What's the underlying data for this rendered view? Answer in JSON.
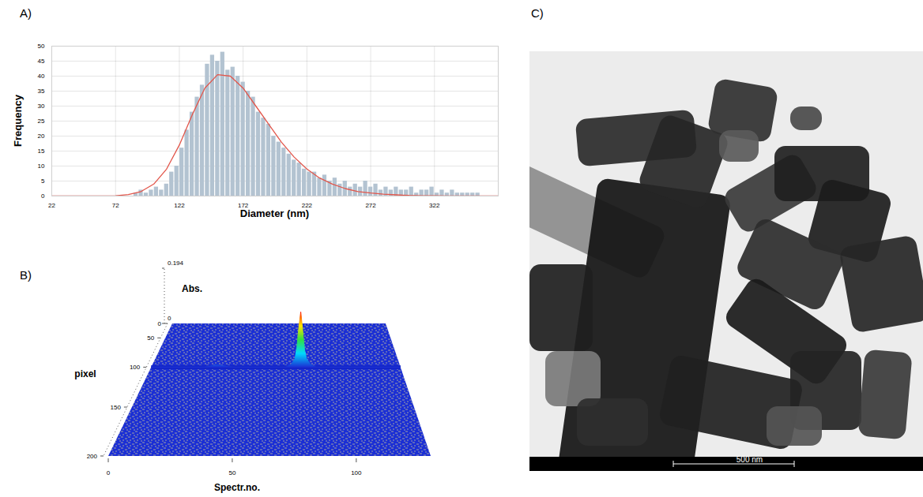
{
  "chart_data": [
    {
      "panel": "A)",
      "type": "histogram",
      "x_label": "Diameter (nm)",
      "y_label": "Frequency",
      "bins": [
        86,
        90,
        94,
        98,
        102,
        106,
        110,
        114,
        118,
        122,
        126,
        130,
        134,
        138,
        142,
        146,
        150,
        154,
        158,
        162,
        166,
        170,
        174,
        178,
        182,
        186,
        190,
        194,
        198,
        202,
        206,
        210,
        214,
        218,
        222,
        226,
        230,
        234,
        238,
        242,
        246,
        250,
        254,
        258,
        262,
        266,
        270,
        274,
        278,
        282,
        286,
        290,
        294,
        298,
        302,
        306,
        310,
        314,
        318,
        322,
        326,
        330,
        334,
        338,
        342,
        346,
        350,
        354,
        358
      ],
      "counts": [
        1,
        2,
        1,
        2,
        3,
        2,
        4,
        8,
        10,
        16,
        22,
        28,
        33,
        37,
        44,
        47,
        45,
        48,
        42,
        43,
        40,
        38,
        35,
        33,
        28,
        26,
        24,
        20,
        18,
        16,
        14,
        12,
        11,
        9,
        8,
        8,
        6,
        7,
        5,
        6,
        4,
        5,
        3,
        4,
        3,
        5,
        3,
        4,
        2,
        3,
        2,
        3,
        2,
        2,
        3,
        1,
        2,
        2,
        3,
        1,
        2,
        1,
        2,
        1,
        1,
        1,
        1,
        1
      ],
      "color": "#b3c3d1",
      "series": [
        {
          "type": "line",
          "color": "#e2564b",
          "x": [
            22,
            32,
            42,
            52,
            62,
            72,
            82,
            92,
            102,
            112,
            122,
            132,
            142,
            152,
            162,
            172,
            182,
            192,
            202,
            212,
            222,
            232,
            242,
            252,
            262,
            272,
            282,
            292,
            302,
            312,
            322,
            332,
            342,
            352,
            362,
            372
          ],
          "values": [
            0,
            0,
            0,
            0,
            0,
            0.1,
            0.5,
            1.5,
            4,
            9,
            17,
            27,
            36,
            40.5,
            40,
            36,
            30,
            24,
            18,
            13,
            9,
            6,
            4,
            2.5,
            1.5,
            1,
            0.6,
            0.4,
            0.2,
            0.1,
            0.1,
            0,
            0,
            0,
            0,
            0
          ]
        }
      ],
      "xlim": [
        22,
        372
      ],
      "ylim": [
        0,
        50
      ],
      "xticks": [
        22,
        72,
        122,
        172,
        222,
        272,
        322
      ],
      "yticks": [
        0,
        5,
        10,
        15,
        20,
        25,
        30,
        35,
        40,
        45,
        50
      ],
      "grid": true
    },
    {
      "panel": "B)",
      "type": "surface3d",
      "x_label": "Spectr.no.",
      "y_label": "pixel",
      "z_label": "Abs.",
      "xlim": [
        0,
        130
      ],
      "ylim": [
        0,
        200
      ],
      "zlim": [
        0,
        0.194
      ],
      "xticks": [
        0,
        50,
        100
      ],
      "yticks": [
        0,
        50,
        100,
        150,
        200
      ],
      "zticks": [
        0,
        0.194
      ],
      "profile": {
        "pixel": 100,
        "x": [
          0,
          28,
          31,
          34,
          37,
          40,
          43,
          70,
          73,
          75,
          76,
          77,
          78,
          79,
          80,
          81,
          83,
          86,
          130
        ],
        "values": [
          0,
          0,
          0.004,
          0.008,
          0.006,
          0.002,
          0,
          0,
          0.01,
          0.03,
          0.07,
          0.14,
          0.194,
          0.13,
          0.06,
          0.03,
          0.01,
          0,
          0
        ]
      }
    }
  ],
  "panels": {
    "C": {
      "label": "C)",
      "type": "image",
      "scale_bar": "500 nm"
    }
  }
}
